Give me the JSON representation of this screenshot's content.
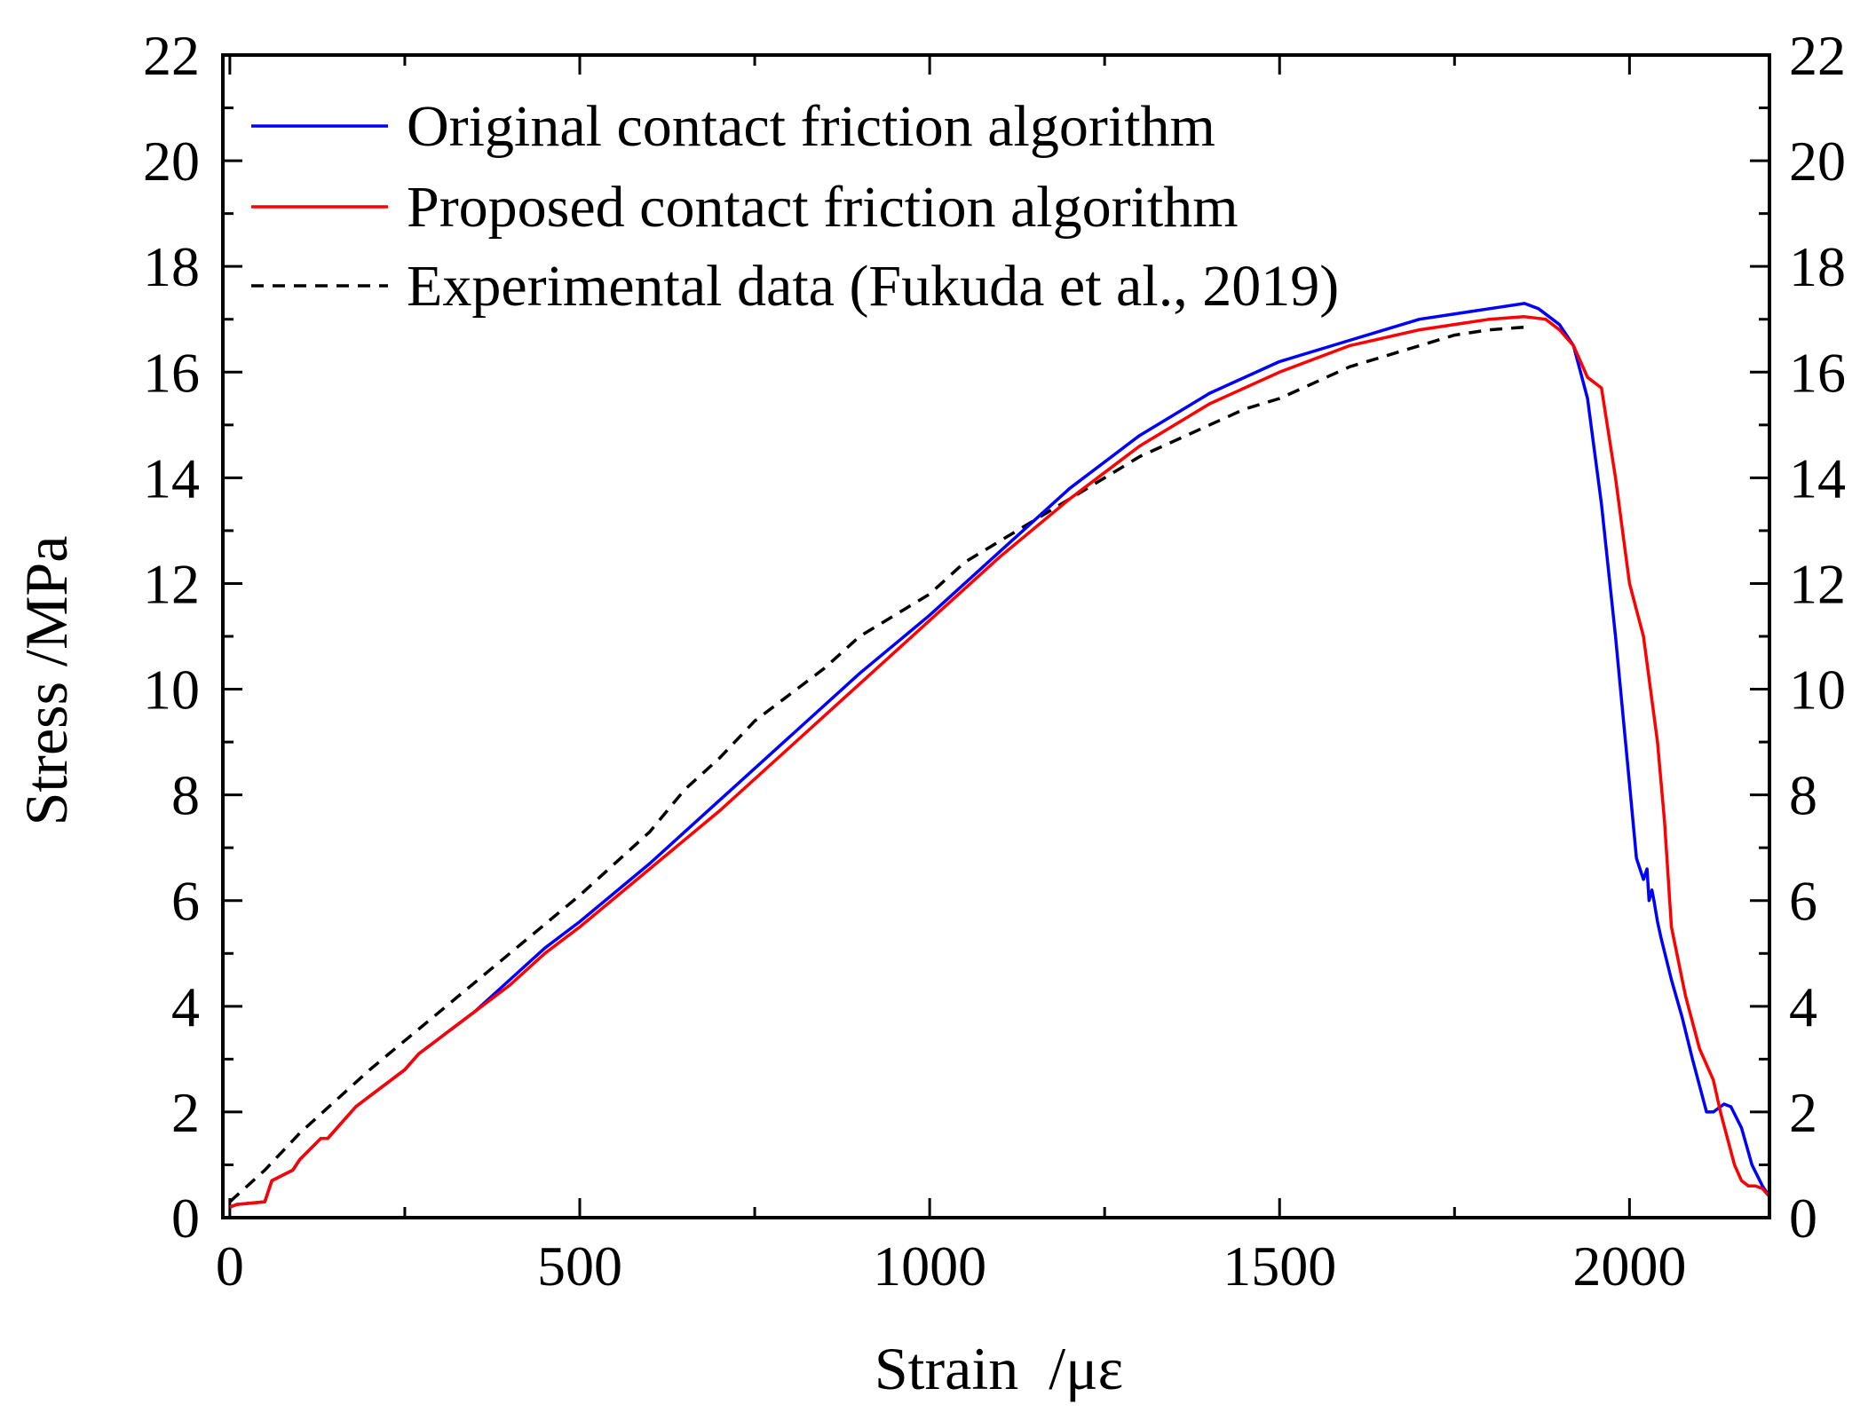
{
  "chart_data": {
    "type": "line",
    "title": "",
    "xlabel": "Strain  /με",
    "ylabel": "Stress /MPa",
    "xlim": [
      -10,
      2200
    ],
    "ylim": [
      0,
      22
    ],
    "xticks": [
      0,
      500,
      1000,
      1500,
      2000
    ],
    "xtick_labels": [
      "0",
      "500",
      "1000",
      "1500",
      "2000"
    ],
    "yticks": [
      0,
      2,
      4,
      6,
      8,
      10,
      12,
      14,
      16,
      18,
      20,
      22
    ],
    "ytick_labels": [
      "0",
      "2",
      "4",
      "6",
      "8",
      "10",
      "12",
      "14",
      "16",
      "18",
      "20",
      "22"
    ],
    "legend_position": "top-left",
    "series": [
      {
        "name": "Original contact friction algorithm",
        "color": "#0000ff",
        "style": "solid",
        "x": [
          0,
          10,
          50,
          60,
          90,
          100,
          130,
          140,
          160,
          180,
          200,
          230,
          250,
          270,
          300,
          330,
          350,
          400,
          450,
          500,
          600,
          700,
          800,
          900,
          1000,
          1100,
          1200,
          1300,
          1400,
          1500,
          1600,
          1700,
          1800,
          1850,
          1870,
          1900,
          1920,
          1940,
          1960,
          1980,
          2000,
          2010,
          2020,
          2025,
          2028,
          2032,
          2035,
          2040,
          2045,
          2060,
          2075,
          2090,
          2100,
          2110,
          2120,
          2135,
          2145,
          2160,
          2175,
          2190,
          2200
        ],
        "values": [
          0.2,
          0.25,
          0.3,
          0.7,
          0.9,
          1.1,
          1.5,
          1.5,
          1.8,
          2.1,
          2.3,
          2.6,
          2.8,
          3.1,
          3.4,
          3.7,
          3.9,
          4.5,
          5.1,
          5.6,
          6.7,
          7.9,
          9.1,
          10.3,
          11.4,
          12.6,
          13.8,
          14.8,
          15.6,
          16.2,
          16.6,
          17.0,
          17.2,
          17.3,
          17.2,
          16.9,
          16.5,
          15.5,
          13.5,
          11.0,
          8.2,
          6.8,
          6.4,
          6.6,
          6.0,
          6.2,
          6.0,
          5.6,
          5.3,
          4.5,
          3.8,
          3.0,
          2.5,
          2.0,
          2.0,
          2.15,
          2.1,
          1.7,
          1.0,
          0.6,
          0.4
        ]
      },
      {
        "name": "Proposed contact friction algorithm",
        "color": "#ff0000",
        "style": "solid",
        "x": [
          0,
          10,
          50,
          60,
          90,
          100,
          130,
          140,
          160,
          180,
          200,
          230,
          250,
          270,
          300,
          330,
          350,
          400,
          450,
          500,
          600,
          700,
          800,
          900,
          1000,
          1100,
          1200,
          1300,
          1400,
          1500,
          1600,
          1700,
          1800,
          1850,
          1880,
          1900,
          1920,
          1940,
          1960,
          1980,
          2000,
          2020,
          2040,
          2050,
          2060,
          2080,
          2100,
          2120,
          2130,
          2150,
          2160,
          2170,
          2180,
          2190,
          2200
        ],
        "values": [
          0.2,
          0.25,
          0.3,
          0.7,
          0.9,
          1.1,
          1.5,
          1.5,
          1.8,
          2.1,
          2.3,
          2.6,
          2.8,
          3.1,
          3.4,
          3.7,
          3.9,
          4.4,
          5.0,
          5.5,
          6.6,
          7.7,
          8.9,
          10.1,
          11.3,
          12.5,
          13.6,
          14.6,
          15.4,
          16.0,
          16.5,
          16.8,
          17.0,
          17.05,
          17.0,
          16.8,
          16.5,
          15.9,
          15.7,
          14.0,
          12.0,
          11.0,
          9.0,
          7.5,
          5.5,
          4.2,
          3.2,
          2.6,
          2.0,
          1.0,
          0.7,
          0.6,
          0.6,
          0.55,
          0.4
        ]
      },
      {
        "name": "Experimental data (Fukuda et al., 2019)",
        "color": "#000000",
        "style": "dashed",
        "x": [
          0,
          50,
          100,
          200,
          300,
          400,
          500,
          600,
          650,
          700,
          750,
          800,
          850,
          900,
          950,
          1000,
          1050,
          1100,
          1150,
          1200,
          1250,
          1300,
          1350,
          1400,
          1450,
          1500,
          1550,
          1600,
          1650,
          1700,
          1750,
          1800,
          1850,
          1860
        ],
        "values": [
          0.3,
          0.9,
          1.6,
          2.8,
          3.9,
          5.0,
          6.1,
          7.3,
          8.1,
          8.7,
          9.4,
          9.9,
          10.4,
          11.0,
          11.4,
          11.8,
          12.4,
          12.8,
          13.2,
          13.6,
          14.0,
          14.4,
          14.7,
          15.0,
          15.3,
          15.5,
          15.8,
          16.1,
          16.3,
          16.5,
          16.7,
          16.8,
          16.85,
          16.85
        ]
      }
    ]
  }
}
